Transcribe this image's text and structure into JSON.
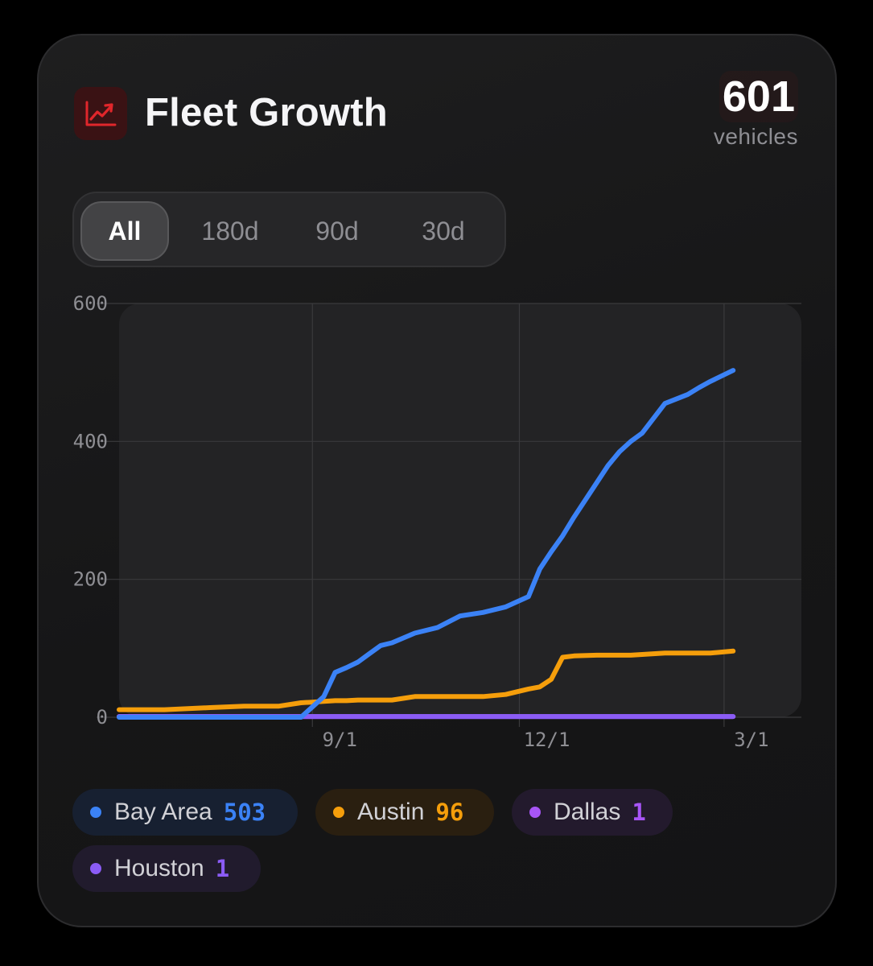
{
  "header": {
    "title": "Fleet Growth",
    "icon": "trending-up-icon",
    "total_value": "601",
    "total_unit": "vehicles",
    "accent": "#e0262b"
  },
  "ranges": {
    "options": [
      "All",
      "180d",
      "90d",
      "30d"
    ],
    "selected": "All"
  },
  "chart_data": {
    "type": "line",
    "title": "Fleet Growth",
    "xlabel": "",
    "ylabel": "",
    "ylim": [
      0,
      600
    ],
    "yticks": [
      "0",
      "200",
      "400",
      "600"
    ],
    "xticks": [
      "9/1",
      "12/1",
      "3/1"
    ],
    "x_domain": "days since 2025-06-08",
    "x": [
      0,
      20,
      40,
      55,
      70,
      80,
      85,
      90,
      95,
      100,
      105,
      110,
      115,
      120,
      130,
      140,
      150,
      160,
      170,
      180,
      185,
      190,
      195,
      200,
      210,
      215,
      220,
      225,
      230,
      240,
      250,
      255,
      260,
      270,
      280,
      285,
      290,
      295,
      300
    ],
    "series": [
      {
        "name": "Bay Area",
        "color": "#3b82f6",
        "values": [
          0,
          0,
          0,
          0,
          0,
          0,
          15,
          30,
          65,
          72,
          80,
          92,
          104,
          108,
          122,
          130,
          147,
          152,
          160,
          175,
          215,
          240,
          263,
          290,
          340,
          365,
          385,
          400,
          412,
          455,
          468,
          478,
          487,
          503,
          null,
          null,
          null,
          null,
          null
        ]
      },
      {
        "name": "Austin",
        "color": "#f59e0b",
        "values": [
          11,
          11,
          14,
          16,
          16,
          21,
          22,
          23,
          24,
          24,
          25,
          25,
          25,
          25,
          30,
          30,
          30,
          30,
          33,
          41,
          44,
          55,
          87,
          89,
          90,
          90,
          90,
          90,
          91,
          93,
          93,
          93,
          93,
          96,
          null,
          null,
          null,
          null,
          null
        ]
      },
      {
        "name": "Dallas",
        "color": "#a855f7",
        "values": [
          1,
          1,
          1,
          1,
          1,
          1,
          1,
          1,
          1,
          1,
          1,
          1,
          1,
          1,
          1,
          1,
          1,
          1,
          1,
          1,
          1,
          1,
          1,
          1,
          1,
          1,
          1,
          1,
          1,
          1,
          1,
          1,
          1,
          1,
          null,
          null,
          null,
          null,
          null
        ]
      },
      {
        "name": "Houston",
        "color": "#8b5cf6",
        "values": [
          1,
          1,
          1,
          1,
          1,
          1,
          1,
          1,
          1,
          1,
          1,
          1,
          1,
          1,
          1,
          1,
          1,
          1,
          1,
          1,
          1,
          1,
          1,
          1,
          1,
          1,
          1,
          1,
          1,
          1,
          1,
          1,
          1,
          1,
          null,
          null,
          null,
          null,
          null
        ]
      }
    ],
    "xtick_positions_days": [
      85,
      176,
      266
    ],
    "x_range": [
      0,
      300
    ]
  },
  "legend": [
    {
      "name": "Bay Area",
      "count": "503",
      "color": "#3b82f6",
      "bg": "#172031"
    },
    {
      "name": "Austin",
      "count": "96",
      "color": "#f59e0b",
      "bg": "#2a1f10"
    },
    {
      "name": "Dallas",
      "count": "1",
      "color": "#a855f7",
      "bg": "#231a2d"
    },
    {
      "name": "Houston",
      "count": "1",
      "color": "#8b5cf6",
      "bg": "#211b2d"
    }
  ]
}
